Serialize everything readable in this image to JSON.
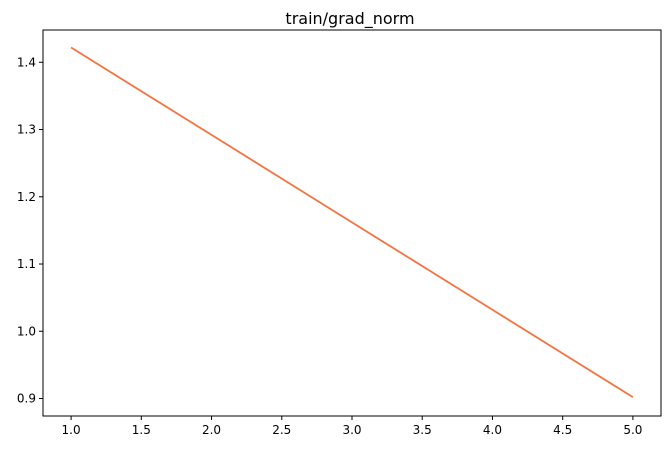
{
  "chart_data": {
    "type": "line",
    "title": "train/grad_norm",
    "xlabel": "",
    "ylabel": "",
    "xlim": [
      0.8,
      5.2
    ],
    "ylim": [
      0.874,
      1.448
    ],
    "x_ticks": [
      1.0,
      1.5,
      2.0,
      2.5,
      3.0,
      3.5,
      4.0,
      4.5,
      5.0
    ],
    "x_tick_labels": [
      "1.0",
      "1.5",
      "2.0",
      "2.5",
      "3.0",
      "3.5",
      "4.0",
      "4.5",
      "5.0"
    ],
    "y_ticks": [
      0.9,
      1.0,
      1.1,
      1.2,
      1.3,
      1.4
    ],
    "y_tick_labels": [
      "0.9",
      "1.0",
      "1.1",
      "1.2",
      "1.3",
      "1.4"
    ],
    "grid": false,
    "series": [
      {
        "name": "train/grad_norm",
        "color": "#f4733f",
        "x": [
          1,
          2,
          3,
          4,
          5
        ],
        "y": [
          1.422,
          1.292,
          1.162,
          1.032,
          0.902
        ]
      }
    ]
  }
}
